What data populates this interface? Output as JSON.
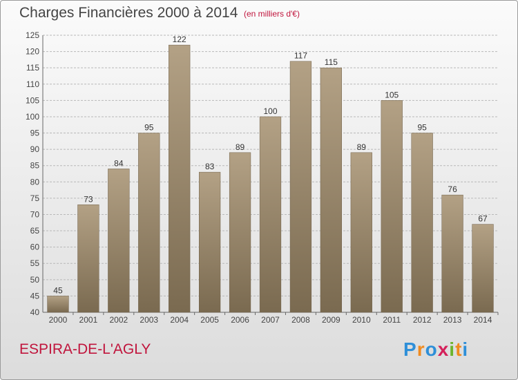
{
  "title": "Charges Financières 2000 à 2014",
  "subtitle": "(en milliers d'€)",
  "commune": "ESPIRA-DE-L'AGLY",
  "logo": [
    "P",
    "r",
    "o",
    "x",
    "i",
    "t",
    "i"
  ],
  "colors": {
    "bar": "#9c8a6e",
    "bar_light": "#b3a185",
    "bar_dark": "#7a6a50",
    "grid": "#b8b8b8",
    "title": "#444444",
    "commune": "#c0143c"
  },
  "chart_data": {
    "type": "bar",
    "categories": [
      "2000",
      "2001",
      "2002",
      "2003",
      "2004",
      "2005",
      "2006",
      "2007",
      "2008",
      "2009",
      "2010",
      "2011",
      "2012",
      "2013",
      "2014"
    ],
    "values": [
      45,
      73,
      84,
      95,
      122,
      83,
      89,
      100,
      117,
      115,
      89,
      105,
      95,
      76,
      67
    ],
    "ylim": [
      40,
      125
    ],
    "yticks": [
      40,
      45,
      50,
      55,
      60,
      65,
      70,
      75,
      80,
      85,
      90,
      95,
      100,
      105,
      110,
      115,
      120,
      125
    ],
    "grid": true,
    "data_labels": true
  }
}
